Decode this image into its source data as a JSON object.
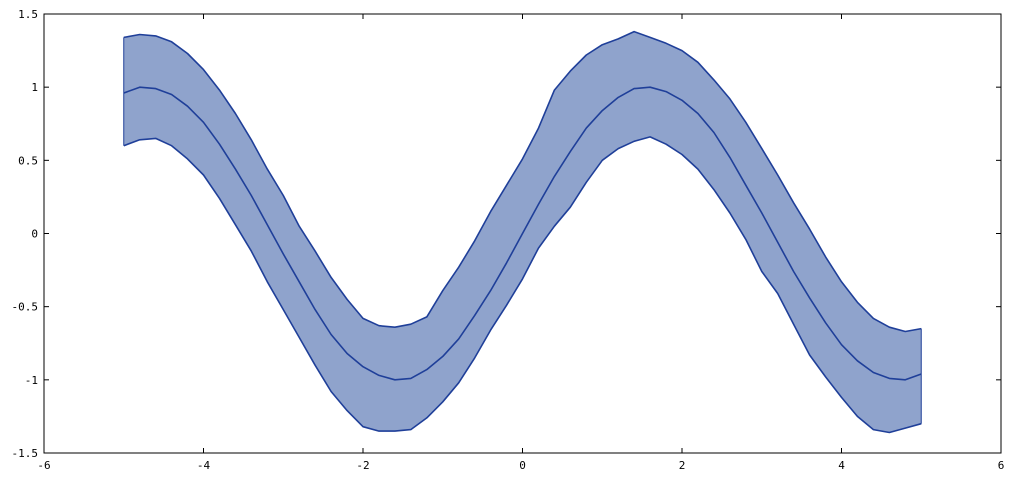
{
  "chart_data": {
    "type": "area",
    "title": "",
    "xlabel": "",
    "ylabel": "",
    "xlim": [
      -6,
      6
    ],
    "ylim": [
      -1.5,
      1.5
    ],
    "xticks": [
      -6,
      -4,
      -2,
      0,
      2,
      4,
      6
    ],
    "xtick_labels": [
      "-6",
      "-4",
      "-2",
      "0",
      "2",
      "4",
      "6"
    ],
    "yticks": [
      -1.5,
      -1,
      -0.5,
      0,
      0.5,
      1,
      1.5
    ],
    "ytick_labels": [
      "-1.5",
      "-1",
      "-0.5",
      "0",
      "0.5",
      "1",
      "1.5"
    ],
    "grid": false,
    "legend": "none",
    "colors": {
      "line": "#1f3f99",
      "band_fill": "#8fa3cc",
      "axis": "#000000"
    },
    "x": [
      -5.0,
      -4.8,
      -4.6,
      -4.4,
      -4.2,
      -4.0,
      -3.8,
      -3.6,
      -3.4,
      -3.2,
      -3.0,
      -2.8,
      -2.6,
      -2.4,
      -2.2,
      -2.0,
      -1.8,
      -1.6,
      -1.4,
      -1.2,
      -1.0,
      -0.8,
      -0.6,
      -0.4,
      -0.2,
      0.0,
      0.2,
      0.4,
      0.6,
      0.8,
      1.0,
      1.2,
      1.4,
      1.6,
      1.8,
      2.0,
      2.2,
      2.4,
      2.6,
      2.8,
      3.0,
      3.2,
      3.4,
      3.6,
      3.8,
      4.0,
      4.2,
      4.4,
      4.6,
      4.8,
      5.0
    ],
    "series": [
      {
        "role": "upper",
        "values": [
          1.34,
          1.36,
          1.35,
          1.31,
          1.23,
          1.12,
          0.98,
          0.82,
          0.64,
          0.44,
          0.26,
          0.05,
          -0.12,
          -0.3,
          -0.45,
          -0.58,
          -0.63,
          -0.64,
          -0.62,
          -0.57,
          -0.39,
          -0.23,
          -0.05,
          0.15,
          0.33,
          0.51,
          0.72,
          0.98,
          1.11,
          1.22,
          1.29,
          1.33,
          1.38,
          1.34,
          1.3,
          1.25,
          1.17,
          1.05,
          0.92,
          0.76,
          0.58,
          0.4,
          0.21,
          0.03,
          -0.16,
          -0.33,
          -0.47,
          -0.58,
          -0.64,
          -0.67,
          -0.65
        ]
      },
      {
        "role": "mean",
        "values": [
          0.96,
          1.0,
          0.99,
          0.95,
          0.87,
          0.76,
          0.61,
          0.44,
          0.26,
          0.06,
          -0.14,
          -0.33,
          -0.52,
          -0.69,
          -0.82,
          -0.91,
          -0.97,
          -1.0,
          -0.99,
          -0.93,
          -0.84,
          -0.72,
          -0.56,
          -0.39,
          -0.2,
          0.0,
          0.2,
          0.39,
          0.56,
          0.72,
          0.84,
          0.93,
          0.99,
          1.0,
          0.97,
          0.91,
          0.82,
          0.69,
          0.52,
          0.33,
          0.14,
          -0.06,
          -0.26,
          -0.44,
          -0.61,
          -0.76,
          -0.87,
          -0.95,
          -0.99,
          -1.0,
          -0.96
        ]
      },
      {
        "role": "lower",
        "values": [
          0.6,
          0.64,
          0.65,
          0.6,
          0.51,
          0.4,
          0.24,
          0.06,
          -0.12,
          -0.33,
          -0.52,
          -0.71,
          -0.9,
          -1.08,
          -1.21,
          -1.32,
          -1.35,
          -1.35,
          -1.34,
          -1.26,
          -1.15,
          -1.02,
          -0.85,
          -0.66,
          -0.49,
          -0.31,
          -0.1,
          0.05,
          0.18,
          0.35,
          0.5,
          0.58,
          0.63,
          0.66,
          0.61,
          0.54,
          0.44,
          0.3,
          0.14,
          -0.04,
          -0.26,
          -0.41,
          -0.62,
          -0.83,
          -0.98,
          -1.12,
          -1.25,
          -1.34,
          -1.36,
          -1.33,
          -1.3
        ]
      }
    ]
  }
}
